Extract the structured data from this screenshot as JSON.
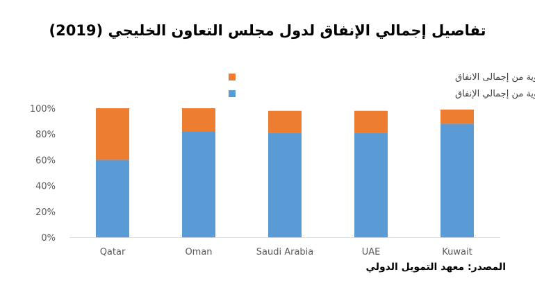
{
  "title": "تفاصيل إجمالي الإنفاق لدول مجلس التعاون الخليجي (2019)",
  "source": "المصدر: معهد التمويل الدولي",
  "chart_data": {
    "type": "bar",
    "stacked": true,
    "categories": [
      "Qatar",
      "Oman",
      "Saudi Arabia",
      "UAE",
      "Kuwait"
    ],
    "series": [
      {
        "name": "الإنفاق الجاري كنسبة مئوية من إجمالي الإنفاق",
        "color": "#5b9bd5",
        "values": [
          60,
          82,
          81,
          81,
          88
        ]
      },
      {
        "name": "الإنفاق الرأسمالى كنسبة مئوية من إجمالى الانفاق",
        "color": "#ed7d31",
        "values": [
          40,
          18,
          17,
          17,
          11
        ]
      }
    ],
    "yticks": [
      "0%",
      "20%",
      "40%",
      "60%",
      "80%",
      "100%"
    ],
    "ylim": [
      0,
      100
    ],
    "grid": false,
    "legend_position": "top-right"
  }
}
